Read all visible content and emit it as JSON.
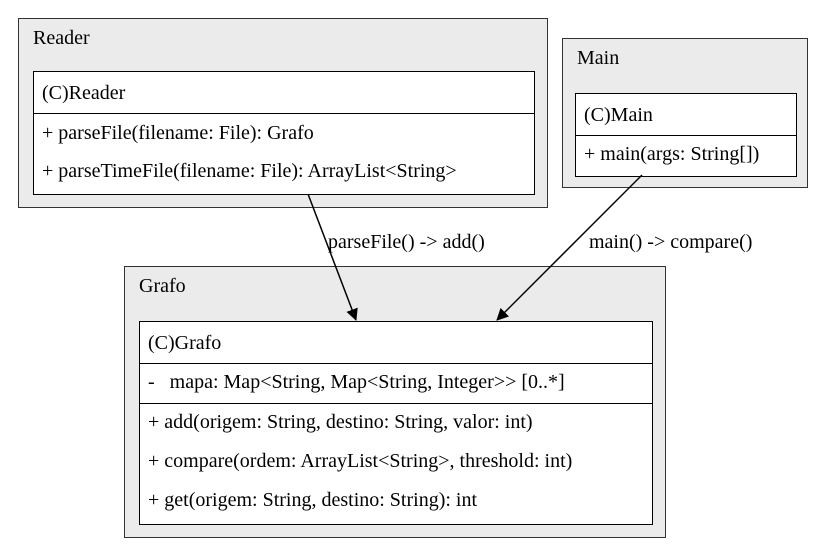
{
  "packages": {
    "reader": {
      "title": "Reader",
      "class_name": "(C)Reader",
      "methods": [
        "+ parseFile(filename: File): Grafo",
        "+ parseTimeFile(filename: File): ArrayList<String>"
      ]
    },
    "main": {
      "title": "Main",
      "class_name": "(C)Main",
      "methods": [
        "+ main(args: String[])"
      ]
    },
    "grafo": {
      "title": "Grafo",
      "class_name": "(C)Grafo",
      "attributes": [
        "-   mapa: Map<String, Map<String, Integer>> [0..*]"
      ],
      "methods": [
        "+ add(origem: String, destino: String, valor: int)",
        "+ compare(ordem: ArrayList<String>, threshold: int)",
        "+ get(origem: String, destino: String): int"
      ]
    }
  },
  "edges": [
    {
      "from": "reader",
      "to": "grafo",
      "label": "parseFile() -> add()"
    },
    {
      "from": "main",
      "to": "grafo",
      "label": "main() -> compare()"
    }
  ]
}
